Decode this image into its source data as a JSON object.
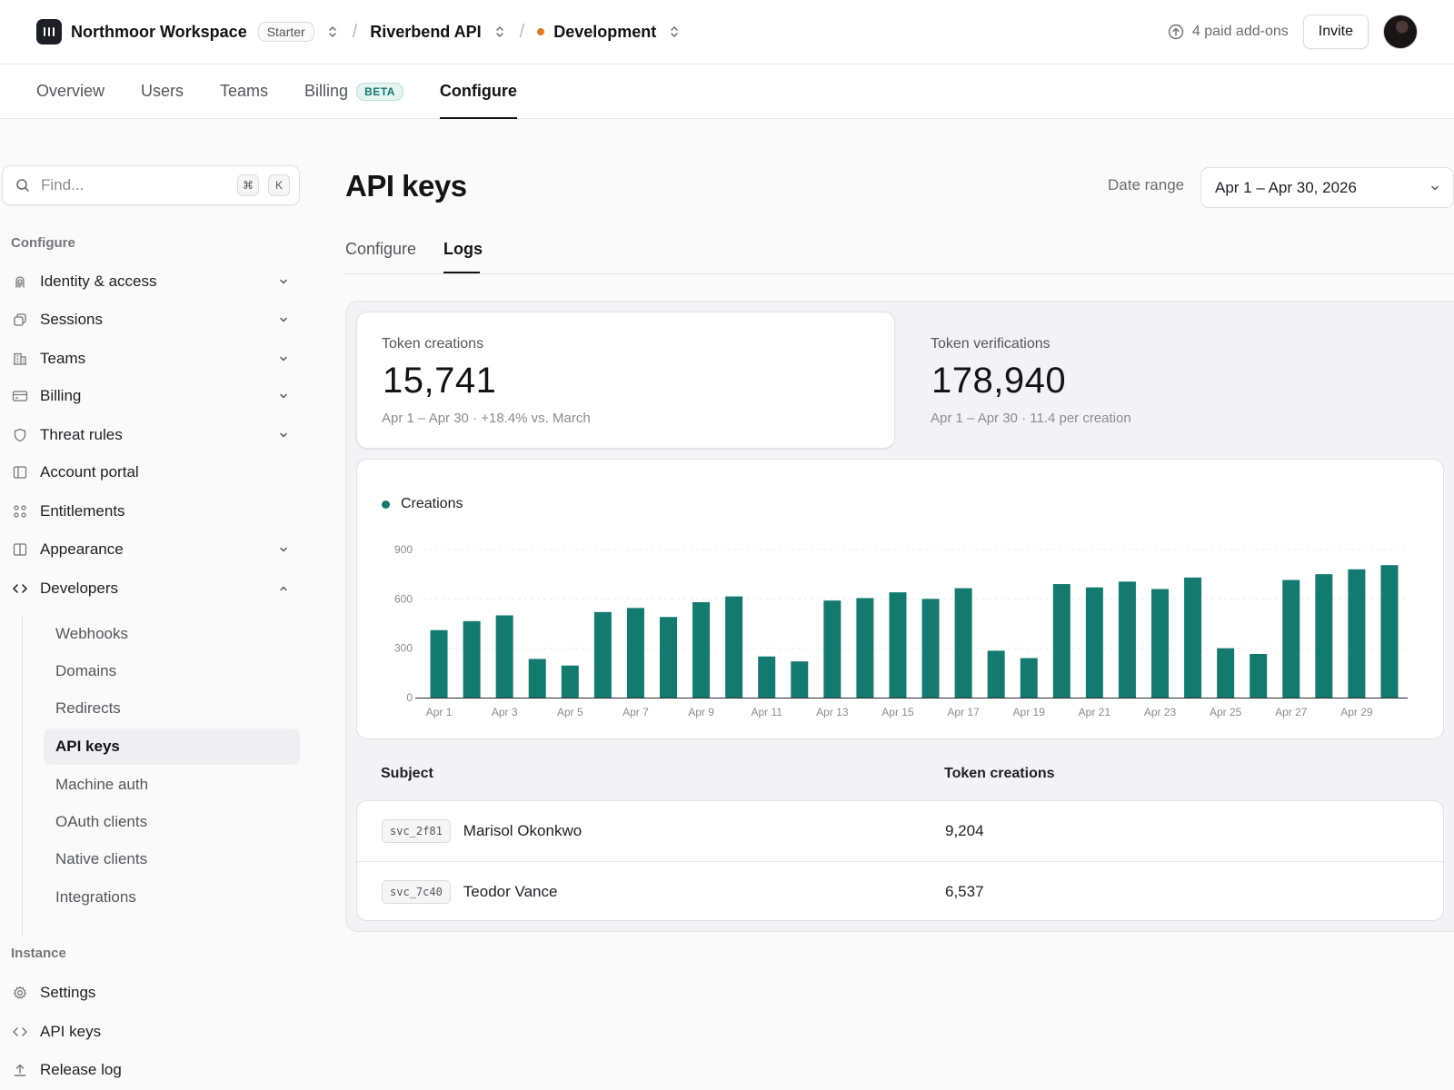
{
  "topbar": {
    "workspace": "Northmoor Workspace",
    "plan": "Starter",
    "app": "Riverbend API",
    "environment": "Development",
    "env_color": "#e07a1f",
    "addons": "4 paid add-ons",
    "invite": "Invite"
  },
  "nav": {
    "tabs": [
      {
        "label": "Overview"
      },
      {
        "label": "Users"
      },
      {
        "label": "Teams"
      },
      {
        "label": "Billing",
        "badge": "BETA"
      },
      {
        "label": "Configure",
        "active": true
      }
    ]
  },
  "sidebar": {
    "search_placeholder": "Find...",
    "kbd1": "⌘",
    "kbd2": "K",
    "section_configure": "Configure",
    "items": [
      {
        "label": "Identity & access",
        "icon": "fingerprint-icon"
      },
      {
        "label": "Sessions",
        "icon": "copy-icon"
      },
      {
        "label": "Teams",
        "icon": "building-icon"
      },
      {
        "label": "Billing",
        "icon": "credit-card-icon"
      },
      {
        "label": "Threat rules",
        "icon": "shield-icon"
      },
      {
        "label": "Account portal",
        "icon": "sidebar-panel-icon"
      },
      {
        "label": "Entitlements",
        "icon": "grid-dots-icon"
      },
      {
        "label": "Appearance",
        "icon": "layout-split-icon"
      },
      {
        "label": "Developers",
        "icon": "code-icon"
      }
    ],
    "developers_sub": [
      {
        "label": "Webhooks"
      },
      {
        "label": "Domains"
      },
      {
        "label": "Redirects"
      },
      {
        "label": "API keys",
        "active": true
      },
      {
        "label": "Machine auth"
      },
      {
        "label": "OAuth clients"
      },
      {
        "label": "Native clients"
      },
      {
        "label": "Integrations"
      }
    ],
    "section_instance": "Instance",
    "instance_items": [
      {
        "label": "Settings",
        "icon": "gear-icon"
      },
      {
        "label": "API keys",
        "icon": "code-icon"
      },
      {
        "label": "Release log",
        "icon": "upload-icon"
      }
    ]
  },
  "main": {
    "title": "API keys",
    "date_range_label": "Date range",
    "date_range_value": "Apr 1 – Apr 30, 2026",
    "subtabs": [
      {
        "label": "Configure"
      },
      {
        "label": "Logs",
        "active": true
      }
    ],
    "stats": [
      {
        "label": "Token creations",
        "value": "15,741",
        "sub": "Apr 1 – Apr 30 · +18.4% vs. March"
      },
      {
        "label": "Token verifications",
        "value": "178,940",
        "sub": "Apr 1 – Apr 30 · 11.4 per creation"
      }
    ],
    "table": {
      "headers": [
        "Subject",
        "Token creations"
      ],
      "rows": [
        {
          "id": "svc_2f81",
          "name": "Marisol Okonkwo",
          "value": "9,204"
        },
        {
          "id": "svc_7c40",
          "name": "Teodor Vance",
          "value": "6,537"
        }
      ]
    }
  },
  "colors": {
    "accent": "#127a6e"
  },
  "chart_data": {
    "type": "bar",
    "categories": [
      "Apr 1",
      "Apr 2",
      "Apr 3",
      "Apr 4",
      "Apr 5",
      "Apr 6",
      "Apr 7",
      "Apr 8",
      "Apr 9",
      "Apr 10",
      "Apr 11",
      "Apr 12",
      "Apr 13",
      "Apr 14",
      "Apr 15",
      "Apr 16",
      "Apr 17",
      "Apr 18",
      "Apr 19",
      "Apr 20",
      "Apr 21",
      "Apr 22",
      "Apr 23",
      "Apr 24",
      "Apr 25",
      "Apr 26",
      "Apr 27",
      "Apr 28",
      "Apr 29",
      "Apr 30"
    ],
    "tick_labels": [
      "Apr 1",
      "Apr 3",
      "Apr 5",
      "Apr 7",
      "Apr 9",
      "Apr 11",
      "Apr 13",
      "Apr 15",
      "Apr 17",
      "Apr 19",
      "Apr 21",
      "Apr 23",
      "Apr 25",
      "Apr 27",
      "Apr 29"
    ],
    "series": [
      {
        "name": "Creations",
        "color": "#127a6e",
        "values": [
          410,
          465,
          500,
          235,
          195,
          520,
          545,
          490,
          580,
          615,
          250,
          220,
          590,
          605,
          640,
          600,
          665,
          285,
          240,
          690,
          670,
          705,
          660,
          730,
          300,
          265,
          715,
          750,
          780,
          805
        ]
      }
    ],
    "yticks": [
      0,
      300,
      600,
      900
    ],
    "ylim": [
      0,
      900
    ],
    "grid": true,
    "legend": "top-left"
  }
}
